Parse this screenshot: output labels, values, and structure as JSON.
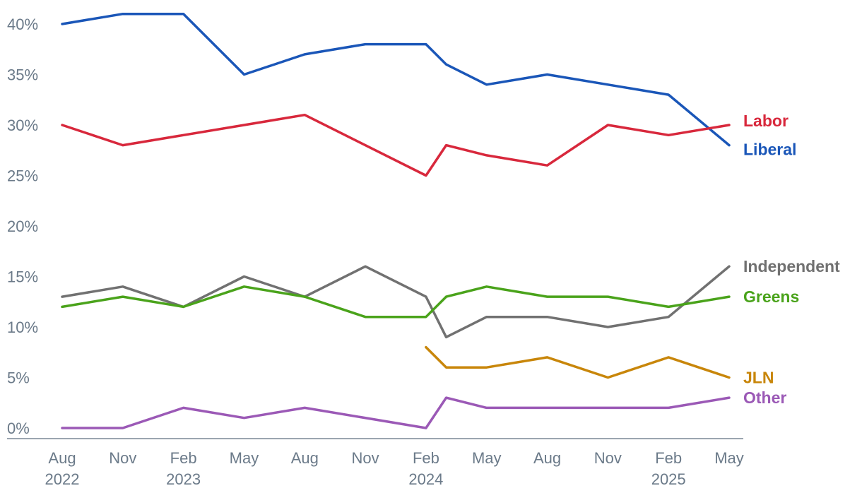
{
  "chart_data": {
    "type": "line",
    "title": "",
    "xlabel": "",
    "ylabel": "",
    "ylim": [
      0,
      40
    ],
    "yticks": [
      {
        "value": 0,
        "label": "0%"
      },
      {
        "value": 5,
        "label": "5%"
      },
      {
        "value": 10,
        "label": "10%"
      },
      {
        "value": 15,
        "label": "15%"
      },
      {
        "value": 20,
        "label": "20%"
      },
      {
        "value": 25,
        "label": "25%"
      },
      {
        "value": 30,
        "label": "30%"
      },
      {
        "value": 35,
        "label": "35%"
      },
      {
        "value": 40,
        "label": "40%"
      }
    ],
    "xlim": [
      "2022-08",
      "2025-05"
    ],
    "xticks": [
      {
        "date": "2022-08",
        "label": "Aug",
        "year": "2022"
      },
      {
        "date": "2022-11",
        "label": "Nov",
        "year": ""
      },
      {
        "date": "2023-02",
        "label": "Feb",
        "year": "2023"
      },
      {
        "date": "2023-05",
        "label": "May",
        "year": ""
      },
      {
        "date": "2023-08",
        "label": "Aug",
        "year": ""
      },
      {
        "date": "2023-11",
        "label": "Nov",
        "year": ""
      },
      {
        "date": "2024-02",
        "label": "Feb",
        "year": "2024"
      },
      {
        "date": "2024-05",
        "label": "May",
        "year": ""
      },
      {
        "date": "2024-08",
        "label": "Aug",
        "year": ""
      },
      {
        "date": "2024-11",
        "label": "Nov",
        "year": ""
      },
      {
        "date": "2025-02",
        "label": "Feb",
        "year": "2025"
      },
      {
        "date": "2025-05",
        "label": "May",
        "year": ""
      }
    ],
    "series": [
      {
        "name": "Liberal",
        "color": "#1a56b8",
        "points": [
          {
            "x": "2022-08",
            "y": 40
          },
          {
            "x": "2022-11",
            "y": 41
          },
          {
            "x": "2023-02",
            "y": 41
          },
          {
            "x": "2023-05",
            "y": 35
          },
          {
            "x": "2023-08",
            "y": 37
          },
          {
            "x": "2023-11",
            "y": 38
          },
          {
            "x": "2024-02",
            "y": 38
          },
          {
            "x": "2024-03",
            "y": 36
          },
          {
            "x": "2024-05",
            "y": 34
          },
          {
            "x": "2024-08",
            "y": 35
          },
          {
            "x": "2024-11",
            "y": 34
          },
          {
            "x": "2025-02",
            "y": 33
          },
          {
            "x": "2025-05",
            "y": 28
          }
        ]
      },
      {
        "name": "Labor",
        "color": "#d8283c",
        "points": [
          {
            "x": "2022-08",
            "y": 30
          },
          {
            "x": "2022-11",
            "y": 28
          },
          {
            "x": "2023-08",
            "y": 31
          },
          {
            "x": "2024-02",
            "y": 25
          },
          {
            "x": "2024-03",
            "y": 28
          },
          {
            "x": "2024-05",
            "y": 27
          },
          {
            "x": "2024-08",
            "y": 26
          },
          {
            "x": "2024-11",
            "y": 30
          },
          {
            "x": "2025-02",
            "y": 29
          },
          {
            "x": "2025-05",
            "y": 30
          }
        ]
      },
      {
        "name": "Independent",
        "color": "#717171",
        "points": [
          {
            "x": "2022-08",
            "y": 13
          },
          {
            "x": "2022-11",
            "y": 14
          },
          {
            "x": "2023-02",
            "y": 12
          },
          {
            "x": "2023-05",
            "y": 15
          },
          {
            "x": "2023-08",
            "y": 13
          },
          {
            "x": "2023-11",
            "y": 16
          },
          {
            "x": "2024-02",
            "y": 13
          },
          {
            "x": "2024-03",
            "y": 9
          },
          {
            "x": "2024-05",
            "y": 11
          },
          {
            "x": "2024-08",
            "y": 11
          },
          {
            "x": "2024-11",
            "y": 10
          },
          {
            "x": "2025-02",
            "y": 11
          },
          {
            "x": "2025-05",
            "y": 16
          }
        ]
      },
      {
        "name": "Greens",
        "color": "#4aa31b",
        "points": [
          {
            "x": "2022-08",
            "y": 12
          },
          {
            "x": "2022-11",
            "y": 13
          },
          {
            "x": "2023-02",
            "y": 12
          },
          {
            "x": "2023-05",
            "y": 14
          },
          {
            "x": "2023-08",
            "y": 13
          },
          {
            "x": "2023-11",
            "y": 11
          },
          {
            "x": "2024-02",
            "y": 11
          },
          {
            "x": "2024-03",
            "y": 13
          },
          {
            "x": "2024-05",
            "y": 14
          },
          {
            "x": "2024-08",
            "y": 13
          },
          {
            "x": "2024-11",
            "y": 13
          },
          {
            "x": "2025-02",
            "y": 12
          },
          {
            "x": "2025-05",
            "y": 13
          }
        ]
      },
      {
        "name": "JLN",
        "color": "#c8860a",
        "points": [
          {
            "x": "2024-02",
            "y": 8
          },
          {
            "x": "2024-03",
            "y": 6
          },
          {
            "x": "2024-05",
            "y": 6
          },
          {
            "x": "2024-08",
            "y": 7
          },
          {
            "x": "2024-11",
            "y": 5
          },
          {
            "x": "2025-02",
            "y": 7
          },
          {
            "x": "2025-05",
            "y": 5
          }
        ]
      },
      {
        "name": "Other",
        "color": "#9b59b6",
        "points": [
          {
            "x": "2022-08",
            "y": 0
          },
          {
            "x": "2022-11",
            "y": 0
          },
          {
            "x": "2023-02",
            "y": 2
          },
          {
            "x": "2023-05",
            "y": 1
          },
          {
            "x": "2023-08",
            "y": 2
          },
          {
            "x": "2024-02",
            "y": 0
          },
          {
            "x": "2024-03",
            "y": 3
          },
          {
            "x": "2024-05",
            "y": 2
          },
          {
            "x": "2024-08",
            "y": 2
          },
          {
            "x": "2024-11",
            "y": 2
          },
          {
            "x": "2025-02",
            "y": 2
          },
          {
            "x": "2025-05",
            "y": 3
          }
        ]
      }
    ],
    "grid": false,
    "legend": "inline-right"
  }
}
